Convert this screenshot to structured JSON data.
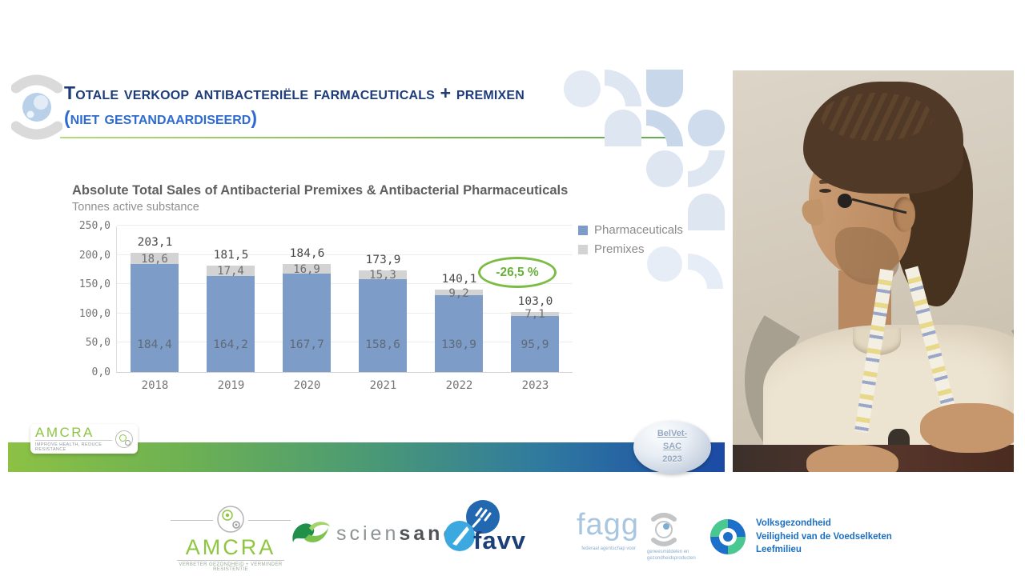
{
  "slide": {
    "title_line1": "Totale verkoop antibacteriële farmaceuticals + premixen",
    "title_line2": "(niet gestandaardiseerd)"
  },
  "chart_data": {
    "type": "bar",
    "stacked": true,
    "title": "Absolute Total Sales of Antibacterial Premixes & Antibacterial Pharmaceuticals",
    "subtitle": "Tonnes active substance",
    "categories": [
      "2018",
      "2019",
      "2020",
      "2021",
      "2022",
      "2023"
    ],
    "series": [
      {
        "name": "Pharmaceuticals",
        "color": "#7d9cc8",
        "values": [
          184.4,
          164.2,
          167.7,
          158.6,
          130.9,
          95.9
        ],
        "labels": [
          "184,4",
          "164,2",
          "167,7",
          "158,6",
          "130,9",
          "95,9"
        ]
      },
      {
        "name": "Premixes",
        "color": "#d3d3d3",
        "values": [
          18.6,
          17.4,
          16.9,
          15.3,
          9.2,
          7.1
        ],
        "labels": [
          "18,6",
          "17,4",
          "16,9",
          "15,3",
          "9,2",
          "7,1"
        ]
      }
    ],
    "totals": [
      203.1,
      181.5,
      184.6,
      173.9,
      140.1,
      103.0
    ],
    "total_labels": [
      "203,1",
      "181,5",
      "184,6",
      "173,9",
      "140,1",
      "103,0"
    ],
    "ylim": [
      0,
      250
    ],
    "yticks": [
      0,
      50,
      100,
      150,
      200,
      250
    ],
    "ytick_labels": [
      "0,0",
      "50,0",
      "100,0",
      "150,0",
      "200,0",
      "250,0"
    ],
    "xlabel": "",
    "ylabel": "Tonnes active substance",
    "grid": true,
    "legend_position": "top-right",
    "annotation": {
      "text": "-26,5 %",
      "color": "#68b03a"
    }
  },
  "footer": {
    "amcra_box": {
      "name": "AMCRA",
      "tagline": "IMPROVE HEALTH, REDUCE RESISTANCE"
    },
    "belvet": {
      "line1": "BelVet-",
      "line2": "SAC",
      "line3": "2023"
    }
  },
  "logos": {
    "amcra": {
      "name": "AMCRA",
      "tagline": "VERBETER GEZONDHEID + VERMINDER RESISTENTIE"
    },
    "sciensano": {
      "part1": "scien",
      "part2": "sano"
    },
    "favv": {
      "name": "favv"
    },
    "fagg": {
      "name": "fagg",
      "sub_left": "federaal agentschap voor",
      "sub_right": "geneesmiddelen en gezondheidsproducten"
    },
    "health": {
      "line1": "Volksgezondheid",
      "line2": "Veiligheid van de Voedselketen",
      "line3": "Leefmilieu"
    }
  }
}
